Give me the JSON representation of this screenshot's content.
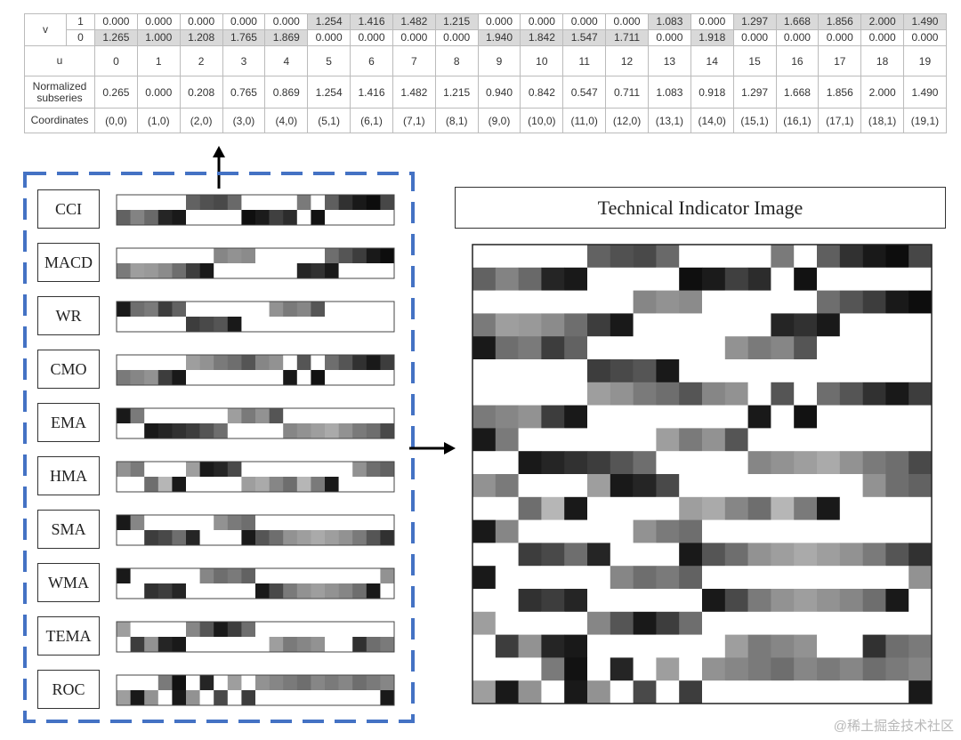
{
  "table": {
    "v_label": "v",
    "v_sub": [
      "1",
      "0"
    ],
    "v1": [
      "0.000",
      "0.000",
      "0.000",
      "0.000",
      "0.000",
      "1.254",
      "1.416",
      "1.482",
      "1.215",
      "0.000",
      "0.000",
      "0.000",
      "0.000",
      "1.083",
      "0.000",
      "1.297",
      "1.668",
      "1.856",
      "2.000",
      "1.490"
    ],
    "v0": [
      "1.265",
      "1.000",
      "1.208",
      "1.765",
      "1.869",
      "0.000",
      "0.000",
      "0.000",
      "0.000",
      "1.940",
      "1.842",
      "1.547",
      "1.711",
      "0.000",
      "1.918",
      "0.000",
      "0.000",
      "0.000",
      "0.000",
      "0.000"
    ],
    "u_label": "u",
    "u": [
      "0",
      "1",
      "2",
      "3",
      "4",
      "5",
      "6",
      "7",
      "8",
      "9",
      "10",
      "11",
      "12",
      "13",
      "14",
      "15",
      "16",
      "17",
      "18",
      "19"
    ],
    "norm_label": "Normalized subseries",
    "norm": [
      "0.265",
      "0.000",
      "0.208",
      "0.765",
      "0.869",
      "1.254",
      "1.416",
      "1.482",
      "1.215",
      "0.940",
      "0.842",
      "0.547",
      "0.711",
      "1.083",
      "0.918",
      "1.297",
      "1.668",
      "1.856",
      "2.000",
      "1.490"
    ],
    "coord_label": "Coordinates",
    "coords": [
      "(0,0)",
      "(1,0)",
      "(2,0)",
      "(3,0)",
      "(4,0)",
      "(5,1)",
      "(6,1)",
      "(7,1)",
      "(8,1)",
      "(9,0)",
      "(10,0)",
      "(11,0)",
      "(12,0)",
      "(13,1)",
      "(14,0)",
      "(15,1)",
      "(16,1)",
      "(17,1)",
      "(18,1)",
      "(19,1)"
    ]
  },
  "indicators": [
    {
      "name": "CCI",
      "top": [
        0,
        0,
        0,
        0,
        0,
        65,
        72,
        75,
        62,
        0,
        0,
        0,
        0,
        55,
        0,
        66,
        85,
        95,
        100,
        76
      ],
      "bottom": [
        65,
        51,
        62,
        90,
        95,
        0,
        0,
        0,
        0,
        99,
        94,
        79,
        87,
        0,
        98,
        0,
        0,
        0,
        0,
        0
      ]
    },
    {
      "name": "MACD",
      "top": [
        0,
        0,
        0,
        0,
        0,
        0,
        0,
        50,
        45,
        48,
        0,
        0,
        0,
        0,
        0,
        60,
        70,
        80,
        95,
        100
      ],
      "bottom": [
        55,
        40,
        42,
        48,
        60,
        80,
        95,
        0,
        0,
        0,
        0,
        0,
        0,
        90,
        85,
        95,
        0,
        0,
        0,
        0
      ]
    },
    {
      "name": "WR",
      "top": [
        95,
        60,
        55,
        80,
        65,
        0,
        0,
        0,
        0,
        0,
        0,
        45,
        55,
        50,
        70,
        0,
        0,
        0,
        0,
        0
      ],
      "bottom": [
        0,
        0,
        0,
        0,
        0,
        80,
        75,
        70,
        95,
        0,
        0,
        0,
        0,
        0,
        0,
        0,
        0,
        0,
        0,
        0
      ]
    },
    {
      "name": "CMO",
      "top": [
        0,
        0,
        0,
        0,
        0,
        40,
        45,
        55,
        60,
        70,
        50,
        45,
        0,
        70,
        0,
        60,
        70,
        85,
        95,
        80
      ],
      "bottom": [
        55,
        50,
        45,
        80,
        95,
        0,
        0,
        0,
        0,
        0,
        0,
        0,
        95,
        0,
        98,
        0,
        0,
        0,
        0,
        0
      ]
    },
    {
      "name": "EMA",
      "top": [
        95,
        55,
        0,
        0,
        0,
        0,
        0,
        0,
        40,
        55,
        45,
        70,
        0,
        0,
        0,
        0,
        0,
        0,
        0,
        0
      ],
      "bottom": [
        0,
        0,
        95,
        90,
        85,
        80,
        70,
        60,
        0,
        0,
        0,
        0,
        50,
        45,
        40,
        35,
        45,
        55,
        60,
        75
      ]
    },
    {
      "name": "HMA",
      "top": [
        45,
        55,
        0,
        0,
        0,
        40,
        95,
        90,
        75,
        0,
        0,
        0,
        0,
        0,
        0,
        0,
        0,
        45,
        60,
        65
      ],
      "bottom": [
        0,
        0,
        60,
        30,
        95,
        0,
        0,
        0,
        0,
        40,
        35,
        50,
        60,
        30,
        55,
        95,
        0,
        0,
        0,
        0
      ]
    },
    {
      "name": "SMA",
      "top": [
        95,
        50,
        0,
        0,
        0,
        0,
        0,
        45,
        55,
        60,
        0,
        0,
        0,
        0,
        0,
        0,
        0,
        0,
        0,
        0
      ],
      "bottom": [
        0,
        0,
        80,
        75,
        60,
        90,
        0,
        0,
        0,
        95,
        70,
        60,
        45,
        40,
        35,
        40,
        45,
        55,
        70,
        85
      ]
    },
    {
      "name": "WMA",
      "top": [
        95,
        0,
        0,
        0,
        0,
        0,
        50,
        60,
        55,
        65,
        0,
        0,
        0,
        0,
        0,
        0,
        0,
        0,
        0,
        45
      ],
      "bottom": [
        0,
        0,
        85,
        80,
        90,
        0,
        0,
        0,
        0,
        0,
        95,
        75,
        55,
        45,
        40,
        45,
        50,
        60,
        95,
        0
      ]
    },
    {
      "name": "TEMA",
      "top": [
        40,
        0,
        0,
        0,
        0,
        50,
        70,
        95,
        80,
        60,
        0,
        0,
        0,
        0,
        0,
        0,
        0,
        0,
        0,
        0
      ],
      "bottom": [
        0,
        80,
        45,
        90,
        95,
        0,
        0,
        0,
        0,
        0,
        0,
        40,
        55,
        50,
        45,
        0,
        0,
        85,
        60,
        55
      ]
    },
    {
      "name": "ROC",
      "top": [
        0,
        0,
        0,
        55,
        98,
        0,
        90,
        0,
        40,
        0,
        45,
        50,
        55,
        60,
        50,
        55,
        50,
        60,
        55,
        50
      ],
      "bottom": [
        40,
        95,
        45,
        0,
        95,
        45,
        0,
        75,
        0,
        80,
        0,
        0,
        0,
        0,
        0,
        0,
        0,
        0,
        0,
        95
      ]
    }
  ],
  "image_title": "Technical Indicator Image",
  "image_grid": [
    [
      0,
      0,
      0,
      0,
      0,
      65,
      72,
      75,
      62,
      0,
      0,
      0,
      0,
      55,
      0,
      66,
      85,
      95,
      100,
      76
    ],
    [
      65,
      51,
      62,
      90,
      95,
      0,
      0,
      0,
      0,
      99,
      94,
      79,
      87,
      0,
      98,
      0,
      0,
      0,
      0,
      0
    ],
    [
      0,
      0,
      0,
      0,
      0,
      0,
      0,
      50,
      45,
      48,
      0,
      0,
      0,
      0,
      0,
      60,
      70,
      80,
      95,
      100
    ],
    [
      55,
      40,
      42,
      48,
      60,
      80,
      95,
      0,
      0,
      0,
      0,
      0,
      0,
      90,
      85,
      95,
      0,
      0,
      0,
      0
    ],
    [
      95,
      60,
      55,
      80,
      65,
      0,
      0,
      0,
      0,
      0,
      0,
      45,
      55,
      50,
      70,
      0,
      0,
      0,
      0,
      0
    ],
    [
      0,
      0,
      0,
      0,
      0,
      80,
      75,
      70,
      95,
      0,
      0,
      0,
      0,
      0,
      0,
      0,
      0,
      0,
      0,
      0
    ],
    [
      0,
      0,
      0,
      0,
      0,
      40,
      45,
      55,
      60,
      70,
      50,
      45,
      0,
      70,
      0,
      60,
      70,
      85,
      95,
      80
    ],
    [
      55,
      50,
      45,
      80,
      95,
      0,
      0,
      0,
      0,
      0,
      0,
      0,
      95,
      0,
      98,
      0,
      0,
      0,
      0,
      0
    ],
    [
      95,
      55,
      0,
      0,
      0,
      0,
      0,
      0,
      40,
      55,
      45,
      70,
      0,
      0,
      0,
      0,
      0,
      0,
      0,
      0
    ],
    [
      0,
      0,
      95,
      90,
      85,
      80,
      70,
      60,
      0,
      0,
      0,
      0,
      50,
      45,
      40,
      35,
      45,
      55,
      60,
      75
    ],
    [
      45,
      55,
      0,
      0,
      0,
      40,
      95,
      90,
      75,
      0,
      0,
      0,
      0,
      0,
      0,
      0,
      0,
      45,
      60,
      65
    ],
    [
      0,
      0,
      60,
      30,
      95,
      0,
      0,
      0,
      0,
      40,
      35,
      50,
      60,
      30,
      55,
      95,
      0,
      0,
      0,
      0
    ],
    [
      95,
      50,
      0,
      0,
      0,
      0,
      0,
      45,
      55,
      60,
      0,
      0,
      0,
      0,
      0,
      0,
      0,
      0,
      0,
      0
    ],
    [
      0,
      0,
      80,
      75,
      60,
      90,
      0,
      0,
      0,
      95,
      70,
      60,
      45,
      40,
      35,
      40,
      45,
      55,
      70,
      85
    ],
    [
      95,
      0,
      0,
      0,
      0,
      0,
      50,
      60,
      55,
      65,
      0,
      0,
      0,
      0,
      0,
      0,
      0,
      0,
      0,
      45
    ],
    [
      0,
      0,
      85,
      80,
      90,
      0,
      0,
      0,
      0,
      0,
      95,
      75,
      55,
      45,
      40,
      45,
      50,
      60,
      95,
      0
    ],
    [
      40,
      0,
      0,
      0,
      0,
      50,
      70,
      95,
      80,
      60,
      0,
      0,
      0,
      0,
      0,
      0,
      0,
      0,
      0,
      0
    ],
    [
      0,
      80,
      45,
      90,
      95,
      0,
      0,
      0,
      0,
      0,
      0,
      40,
      55,
      50,
      45,
      0,
      0,
      85,
      60,
      55
    ],
    [
      0,
      0,
      0,
      55,
      98,
      0,
      90,
      0,
      40,
      0,
      45,
      50,
      55,
      60,
      50,
      55,
      50,
      60,
      55,
      50
    ],
    [
      40,
      95,
      45,
      0,
      95,
      45,
      0,
      75,
      0,
      80,
      0,
      0,
      0,
      0,
      0,
      0,
      0,
      0,
      0,
      95
    ]
  ],
  "watermark": "@稀土掘金技术社区",
  "colors": {
    "dashed_border": "#4472c4",
    "arrow": "#000000",
    "table_highlight": "#d9d9d9"
  }
}
